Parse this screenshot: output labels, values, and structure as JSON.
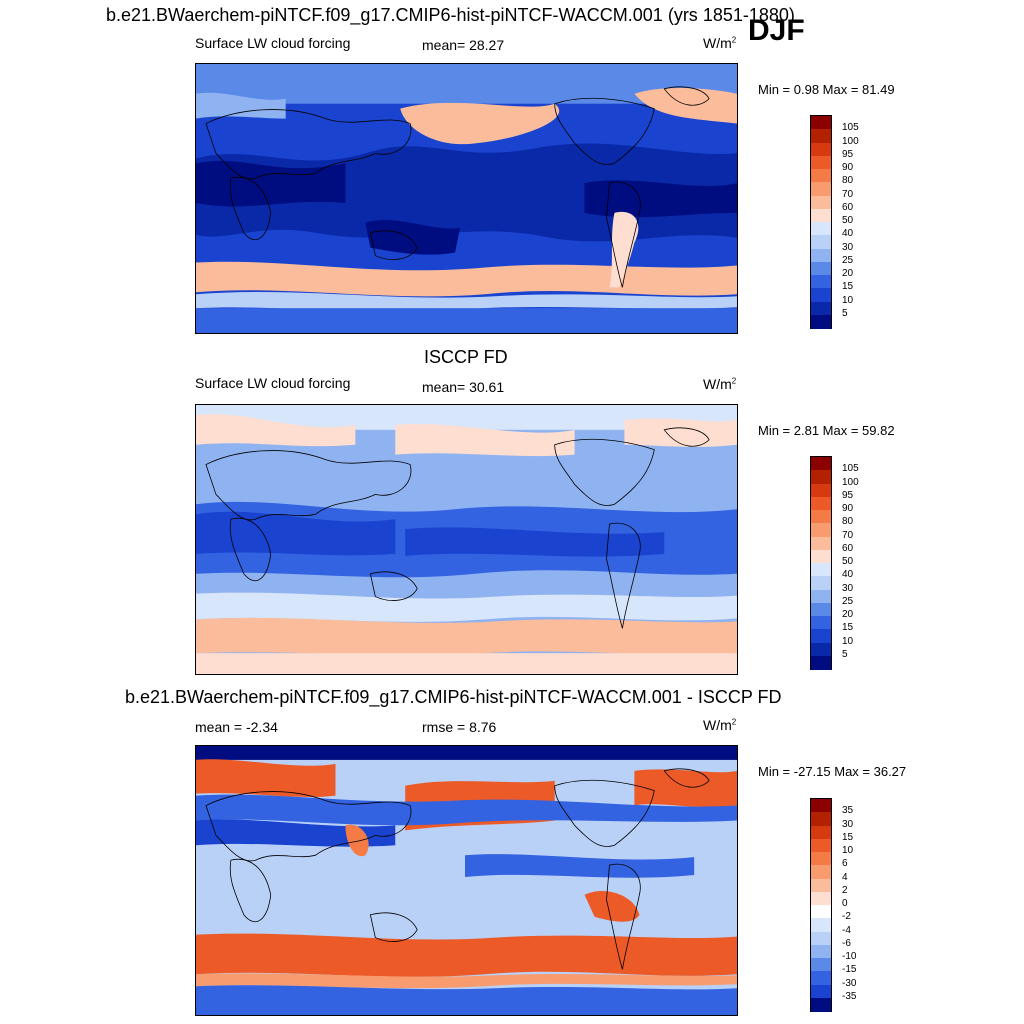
{
  "figure": {
    "title": "b.e21.BWaerchem-piNTCF.f09_g17.CMIP6-hist-piNTCF-WACCM.001 (yrs 1851-1880)",
    "season": "DJF"
  },
  "panels": [
    {
      "heading": "",
      "field_label": "Surface LW cloud forcing",
      "stat1": "mean=  28.27",
      "stat2": "",
      "units_base": "W/m",
      "units_sup": "2",
      "minmax": "Min =   0.98 Max =  81.49",
      "palette": "abs"
    },
    {
      "heading": "ISCCP FD",
      "field_label": "Surface LW cloud forcing",
      "stat1": "mean=  30.61",
      "stat2": "",
      "units_base": "W/m",
      "units_sup": "2",
      "minmax": "Min =   2.81 Max =  59.82",
      "palette": "abs"
    },
    {
      "heading": "b.e21.BWaerchem-piNTCF.f09_g17.CMIP6-hist-piNTCF-WACCM.001 - ISCCP FD",
      "field_label": "",
      "stat1": "mean =  -2.34",
      "stat2": "rmse =   8.76",
      "units_base": "W/m",
      "units_sup": "2",
      "minmax": "Min = -27.15 Max =  36.27",
      "palette": "diff"
    }
  ],
  "colorbars": {
    "abs": {
      "ticks": [
        "105",
        "100",
        "95",
        "90",
        "80",
        "70",
        "60",
        "50",
        "40",
        "30",
        "25",
        "20",
        "15",
        "10",
        "5"
      ],
      "colors": [
        "#8b0000",
        "#b22200",
        "#d63a10",
        "#ec5a28",
        "#f47b45",
        "#f89c70",
        "#fbbc9c",
        "#fdded0",
        "#d8e6fb",
        "#b9d0f7",
        "#8fb2f0",
        "#5a89e8",
        "#3363e0",
        "#1a44d0",
        "#0a29a8",
        "#000d80"
      ]
    },
    "diff": {
      "ticks": [
        "35",
        "30",
        "15",
        "10",
        "6",
        "4",
        "2",
        "0",
        "-2",
        "-4",
        "-6",
        "-10",
        "-15",
        "-30",
        "-35"
      ],
      "colors": [
        "#8b0000",
        "#b22200",
        "#d63a10",
        "#ec5a28",
        "#f47b45",
        "#f89c70",
        "#fbbc9c",
        "#fdded0",
        "#ffffff",
        "#d8e6fb",
        "#b9d0f7",
        "#8fb2f0",
        "#5a89e8",
        "#3363e0",
        "#1a44d0",
        "#000d80"
      ]
    }
  },
  "chart_data": [
    {
      "type": "heatmap",
      "title": "Surface LW cloud forcing",
      "units": "W/m2",
      "mean": 28.27,
      "min": 0.98,
      "max": 81.49,
      "levels": [
        5,
        10,
        15,
        20,
        25,
        30,
        40,
        50,
        60,
        70,
        80,
        90,
        95,
        100,
        105
      ]
    },
    {
      "type": "heatmap",
      "title": "ISCCP FD",
      "units": "W/m2",
      "mean": 30.61,
      "min": 2.81,
      "max": 59.82,
      "levels": [
        5,
        10,
        15,
        20,
        25,
        30,
        40,
        50,
        60,
        70,
        80,
        90,
        95,
        100,
        105
      ]
    },
    {
      "type": "heatmap",
      "title": "b.e21.BWaerchem-piNTCF.f09_g17.CMIP6-hist-piNTCF-WACCM.001 - ISCCP FD",
      "units": "W/m2",
      "mean": -2.34,
      "rmse": 8.76,
      "min": -27.15,
      "max": 36.27,
      "levels": [
        -35,
        -30,
        -15,
        -10,
        -6,
        -4,
        -2,
        0,
        2,
        4,
        6,
        10,
        15,
        30,
        35
      ]
    }
  ]
}
